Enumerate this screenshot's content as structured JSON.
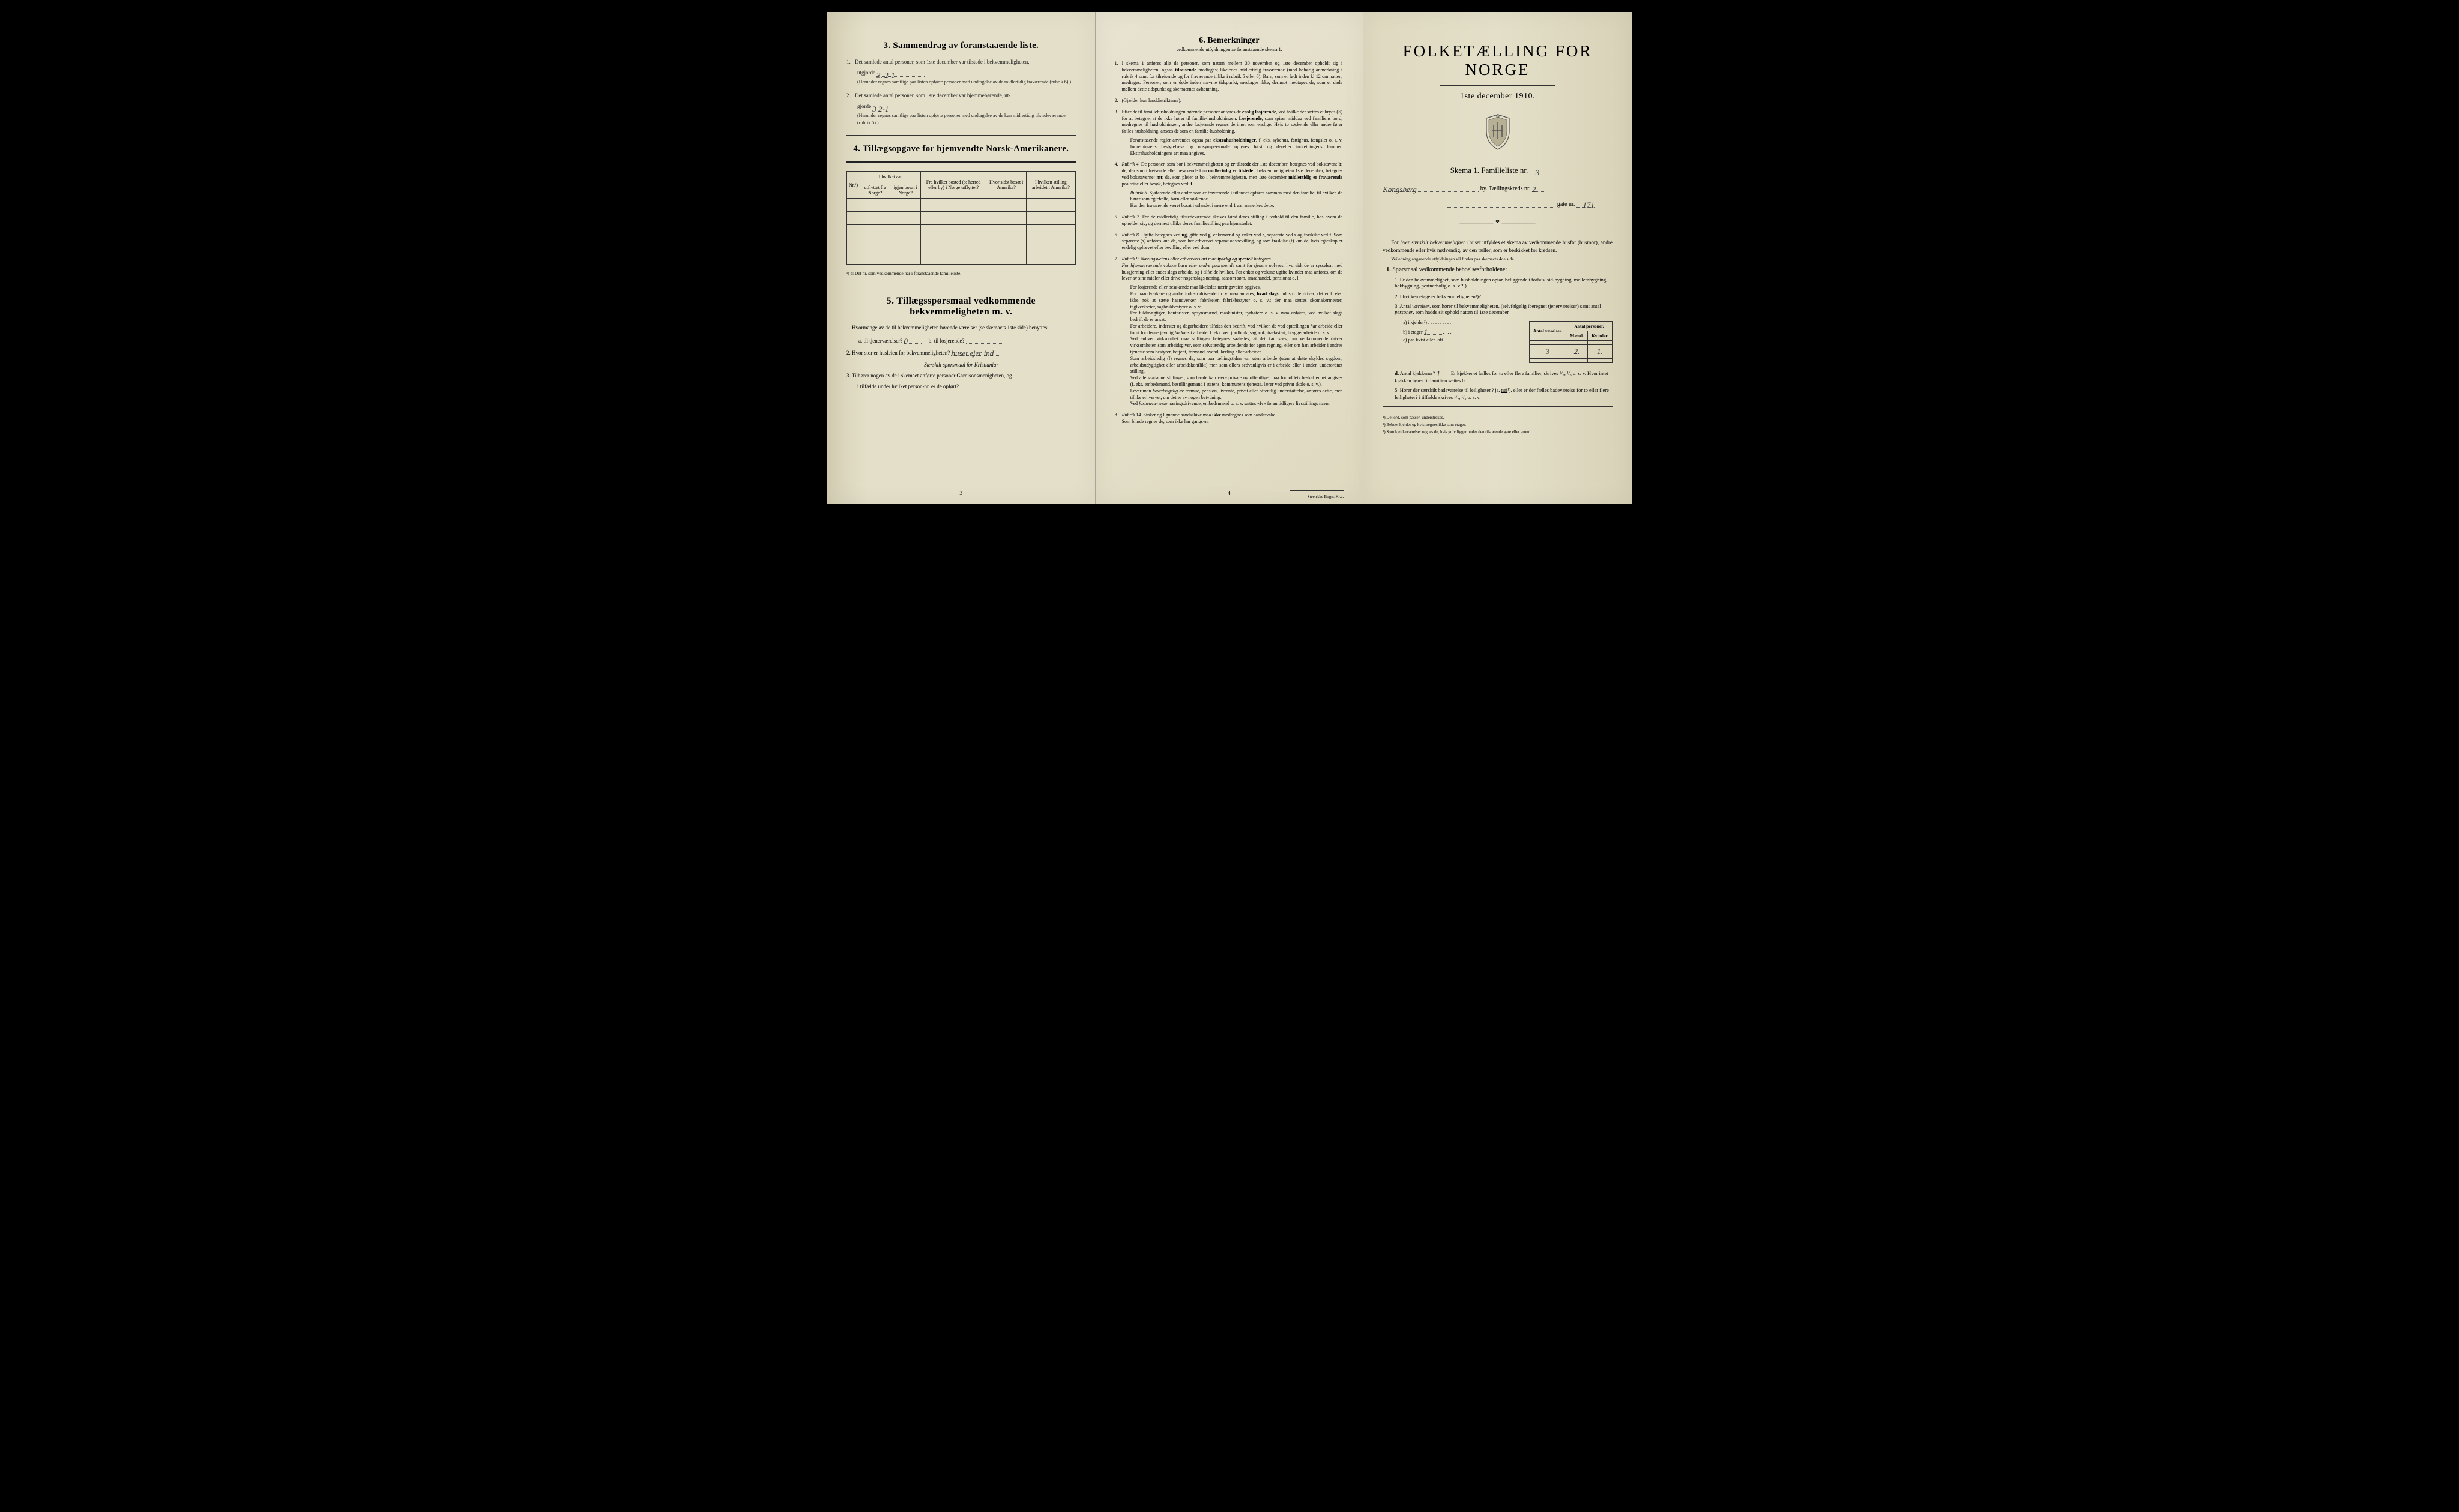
{
  "left": {
    "section3": {
      "title": "3.   Sammendrag av foranstaaende liste.",
      "item1": "Det samlede antal personer, som 1ste december var tilstede i bekvemmeligheten,",
      "item1b": "utgjorde",
      "item1_hand": "3.    2-1",
      "item1_note": "(Herunder regnes samtlige paa listen opførte personer med undtagelse av de midlertidig fraværende (rubrik 6).)",
      "item2": "Det samlede antal personer, som 1ste december var hjemmehørende, ut-",
      "item2b": "gjorde",
      "item2_hand": "3    2-1",
      "item2_note": "(Herunder regnes samtlige paa listen opførte personer med undtagelse av de kun midlertidig tilstedeværende (rubrik 5).)"
    },
    "section4": {
      "title": "4.   Tillægsopgave for hjemvendte Norsk-Amerikanere.",
      "headers": {
        "nr": "Nr.¹)",
        "hvilket_aar": "I hvilket aar",
        "utflyttet": "utflyttet fra Norge?",
        "igjen": "igjen bosat i Norge?",
        "fra_bosted": "Fra hvilket bosted (ɔ: herred eller by) i Norge utflyttet?",
        "hvor_sidst": "Hvor sidst bosat i Amerika?",
        "stilling": "I hvilken stilling arbeidet i Amerika?"
      },
      "footnote": "¹) ɔ: Det nr. som vedkommende har i foranstaaende familieliste."
    },
    "section5": {
      "title": "5.   Tillægsspørsmaal vedkommende bekvemmeligheten m. v.",
      "q1": "Hvormange av de til bekvemmeligheten hørende værelser (se skemacts 1ste side) benyttes:",
      "q1a": "a.  til tjenerværelser?",
      "q1a_hand": "0",
      "q1b": "b.  til losjerende?",
      "q2": "Hvor stor er husleien for bekvemmeligheten?",
      "q2_hand": "huset ejer ind",
      "q2_note": "Særskilt spørsmaal for Kristiania:",
      "q3": "Tilhører nogen av de i skemaet anførte personer Garnisonsmenigheten, og",
      "q3b": "i tilfælde under hvilket person-nr. er de opført?"
    },
    "page_num": "3"
  },
  "middle": {
    "title": "6.   Bemerkninger",
    "subtitle": "vedkommende utfyldningen av foranstaaende skema 1.",
    "items": [
      {
        "n": "1.",
        "t": "I skema 1 anføres alle de personer, som natten mellem 30 november og 1ste december opholdt sig i bekvemmeligheten; ogsaa <b>tilreisende</b> medtages; likeledes midlertidig fraværende (med behørig anmerkning i rubrik 4 samt for tilreisende og for fraværende tillike i rubrik 5 eller 6). Barn, som er født inden kl 12 om natten, medtages. Personer, som er døde inden nævnte tidspunkt, medtages ikke; derimot medtages de, som er døde mellem dette tidspunkt og skemaernes avhentning."
      },
      {
        "n": "2.",
        "t": "(Gjælder kun landdistrikterne)."
      },
      {
        "n": "3.",
        "t": "Efter de til familiehusholdningen hørende personer anføres de <b>enslig losjerende</b>, ved hvilke der sættes et kryds (×) for at betegne, at de ikke hører til familie-husholdningen. <b>Losjerende</b>, som spiser middag ved familiens bord, medregnes til husholdningen; andre losjerende regnes derimot som enslige. Hvis to søskende eller andre fører fælles husholdning, ansees de som en familie-husholdning.<span class='sub'>Foranstaaende regler anvendes ogsaa paa <b>ekstrahusholdninger</b>, f. eks. sykehus, fattighus, fængsler o. s. v. Indretningens bestyrelses- og opsynspersonale opføres først og derefter indretningens lemmer. Ekstrahusholdningens art maa angives.</span>"
      },
      {
        "n": "4.",
        "t": "<em>Rubrik 4.</em> De personer, som bor i bekvemmeligheten og <b>er tilstede</b> der 1ste december, betegnes ved bokstaven: <b>b</b>; de, der som tilreisende eller besøkende kun <b>midlertidig er tilstede</b> i bekvemmeligheten 1ste december, betegnes ved bokstaverne: <b>mt</b>; de, som pleier at bo i bekvemmeligheten, men 1ste december <b>midlertidig er fraværende</b> paa reise eller besøk, betegnes ved: <b>f</b>.<span class='sub'><em>Rubrik 6.</em> Sjøfarende eller andre som er fraværende i utlandet opføres sammen med den familie, til hvilken de hører som egtefælle, barn eller søskende.<br>Har den fraværende været bosat i utlandet i mere end 1 aar anmerkes dette.</span>"
      },
      {
        "n": "5.",
        "t": "<em>Rubrik 7.</em> For de midlertidig tilstedeværende skrives først deres stilling i forhold til den familie, hos hvem de opholder sig, og dernæst tillike deres familiestilling paa hjemstedet."
      },
      {
        "n": "6.",
        "t": "<em>Rubrik 8.</em> Ugifte betegnes ved <b>ug</b>, gifte ved <b>g</b>, enkemænd og enker ved <b>e</b>, separerte ved <b>s</b> og fraskilte ved <b>f</b>. Som separerte (s) anføres kun de, som har erhvervet separationsbevilling, og som fraskilte (f) kun de, hvis egteskap er endelig ophævet efter bevilling eller ved dom."
      },
      {
        "n": "7.",
        "t": "<em>Rubrik 9. Næringsveiens eller erhvervets art maa <b>tydelig og specielt</b> betegnes.</em><br><em>For hjemmeværende voksne barn eller andre paarørende</em> samt for <em>tjenere</em> oplyses, hvorvidt de er sysselsat med husgjerning eller andet slags arbeide, og i tilfælde hvilket. For enker og voksne ugifte kvinder maa anføres, om de lever av sine midler eller driver nogenslags næring, saasom søm, smaahandel, pensionat o. l.<span class='sub'>For losjerende eller besøkende maa likeledes næringsveien opgives.<br>For haandverkere og andre industridrivende m. v. maa anføres, <b>hvad slags</b> industri de driver; det er f. eks. ikke nok at sætte haandverker, fabrikeier, fabrikbestyrer o. s. v.; der maa sættes skomakermester, teglverkseier, sagbrukbestyrer o. s. v.<br>For fuldmægtiger, kontorister, opsynsmænd, maskinister, fyrbøtere o. s. v. maa anføres, ved hvilket slags bedrift de er ansat.<br>For arbeidere, inderster og dagarbeidere tilføies den bedrift, ved hvilken de ved optællingen <em>har</em> arbeide eller forut for denne jevnlig <em>hadde</em> sit arbeide, f. eks. ved jordbruk, sagbruk, trælasteri, bryggerarbeide o. s. v.<br>Ved enhver virksomhet maa stillingen betegnes saaledes, at det kan sees, om vedkommende driver virksomheten som arbeidsgiver, som selvstændig arbeidende for egen regning, eller om han arbeider i andres tjeneste som bestyrer, betjent, formand, svend, lærling eller arbeider.<br>Som arbeidsledig (l) regnes de, som paa tællingstiden var uten arbeide (uten at dette skyldes sygdom, arbeidsudygtighet eller arbeidskonflikt) men som ellers sedvanligvis er i arbeide eller i anden underordnet stilling.<br>Ved alle saadanne stillinger, som baade kan være private og offentlige, maa forholdets beskaffenhet angives (f. eks. embedsmand, bestillingsmand i statens, kommunens tjeneste, lærer ved privat skole o. s. v.).<br>Lever man <em>hovedsagelig</em> av formue, pension, livrente, privat eller offentlig understøttelse, anføres dette, men tillike erhvervet, om det er av nogen betydning.<br>Ved <em>forhenværende</em> næringsdrivende, embedsmænd o. s. v. sættes «fv» foran tidligere livsstillings navn.</span>"
      },
      {
        "n": "8.",
        "t": "<em>Rubrik 14.</em> Sinker og lignende aandssløve maa <b>ikke</b> medregnes som aandssvake.<br>Som blinde regnes de, som ikke har gangsyn."
      }
    ],
    "page_num": "4",
    "printer": "Steen'ske Bogtr.  Kr.a."
  },
  "right": {
    "main_title": "FOLKETÆLLING FOR NORGE",
    "date": "1ste december 1910.",
    "skema": "Skema 1.   Familieliste nr.",
    "skema_hand": "3",
    "by_label": "by.   Tællingskreds nr.",
    "by_hand_left": "Kongsberg",
    "by_hand_right": "2",
    "gate_label": "gate nr.",
    "gate_hand": "171",
    "separator": "————*————",
    "intro": "For <em>hver særskilt bekvemmelighet</em> i huset utfyldes et skema av vedkommende husfar (husmor), andre vedkommende eller hvis nødvendig, av den tæller, som er beskikket for kredsen.",
    "intro_sub": "Veiledning angaaende utfyldningen vil findes paa skemacts 4de side.",
    "q1_title": "Spørsmaal vedkommende beboelsesforholdene:",
    "q1_1": "Er den bekvemmelighet, som husholdningen optar, beliggende i forhus, sid-bygning, mellembygning, bakbygning, portnerbolig o. s. v.?¹)",
    "q1_2": "I hvilken etage er bekvemmeligheten²)?",
    "q1_3": "Antal <em>værelser</em>, som hører til bekvemmeligheten, (selvfølgelig iberegnet tjenerværelser) samt antal <em>personer</em>, som hadde sit ophold natten til 1ste december",
    "table": {
      "h1": "Antal værelser.",
      "h2": "Antal personer.",
      "h2a": "Mænd.",
      "h2b": "Kvinder.",
      "rows": [
        {
          "label": "a) i kjelder³)",
          "v": "",
          "m": "",
          "k": ""
        },
        {
          "label": "b) i etager",
          "etage_hand": "1",
          "v": "3",
          "m": "2.",
          "k": "1."
        },
        {
          "label": "c) paa kvist eller loft",
          "v": "",
          "m": "",
          "k": ""
        }
      ]
    },
    "q1_d": "Antal kjøkkener?",
    "q1_d_hand": "1",
    "q1_d_rest": "Er kjøkkenet fælles for to eller flere familier, skrives ¹/₂, ¹/₃ o. s. v.  Hvor intet kjøkken hører til familien sættes 0",
    "q1_5": "Hører der særskilt badeværelse til leiligheten?  ja,  nei¹), eller er der fælles badeværelse for to eller flere leiligheter?  i tilfælde skrives ¹/₂, ¹/₃ o. s. v.",
    "nei_underline": "nei",
    "footnotes": [
      "¹) Det ord, som passer, understrekes.",
      "²) Beboet kjelder og kvist regnes ikke som etager.",
      "³) Som kjelderværelser regnes de, hvis gulv ligger under den tilstøtende gate eller grund."
    ]
  }
}
